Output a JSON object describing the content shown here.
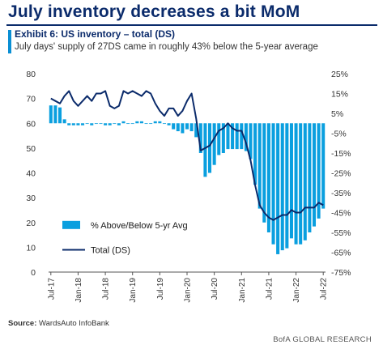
{
  "headline": "July inventory decreases a bit MoM",
  "exhibit_title": "Exhibit 6: US inventory – total (DS)",
  "subtitle": "July days' supply of 27DS came in roughly 43% below the 5-year average",
  "source_label": "Source:",
  "source_text": "WardsAuto InfoBank",
  "brand": "BofA GLOBAL RESEARCH",
  "colors": {
    "bars": "#0a9fdf",
    "line": "#0b2b6b",
    "headline": "#0b2b6b",
    "accent": "#0a8fd4"
  },
  "chart_data": {
    "type": "bar+line",
    "x": [
      "Jul-17",
      "Aug-17",
      "Sep-17",
      "Oct-17",
      "Nov-17",
      "Dec-17",
      "Jan-18",
      "Feb-18",
      "Mar-18",
      "Apr-18",
      "May-18",
      "Jun-18",
      "Jul-18",
      "Aug-18",
      "Sep-18",
      "Oct-18",
      "Nov-18",
      "Dec-18",
      "Jan-19",
      "Feb-19",
      "Mar-19",
      "Apr-19",
      "May-19",
      "Jun-19",
      "Jul-19",
      "Aug-19",
      "Sep-19",
      "Oct-19",
      "Nov-19",
      "Dec-19",
      "Jan-20",
      "Feb-20",
      "Mar-20",
      "Apr-20",
      "May-20",
      "Jun-20",
      "Jul-20",
      "Aug-20",
      "Sep-20",
      "Oct-20",
      "Nov-20",
      "Dec-20",
      "Jan-21",
      "Feb-21",
      "Mar-21",
      "Apr-21",
      "May-21",
      "Jun-21",
      "Jul-21",
      "Aug-21",
      "Sep-21",
      "Oct-21",
      "Nov-21",
      "Dec-21",
      "Jan-22",
      "Feb-22",
      "Mar-22",
      "Apr-22",
      "May-22",
      "Jun-22",
      "Jul-22"
    ],
    "x_tick_labels": [
      "Jul-17",
      "Jan-18",
      "Jul-18",
      "Jan-19",
      "Jul-19",
      "Jan-20",
      "Jul-20",
      "Jan-21",
      "Jul-21",
      "Jan-22",
      "Jul-22"
    ],
    "left_axis": {
      "min": 0,
      "max": 80,
      "ticks": [
        0,
        10,
        20,
        30,
        40,
        50,
        60,
        70,
        80
      ]
    },
    "right_axis": {
      "min": -75,
      "max": 25,
      "ticks": [
        "25%",
        "15%",
        "5%",
        "-5%",
        "-15%",
        "-25%",
        "-35%",
        "-45%",
        "-55%",
        "-65%",
        "-75%"
      ]
    },
    "series": [
      {
        "name": "% Above/Below 5-yr Avg",
        "type": "bar",
        "axis": "right",
        "values": [
          9,
          9,
          8,
          2,
          -1,
          -1,
          -1,
          -1,
          0,
          -1,
          0,
          0,
          -1,
          -1,
          0,
          -1,
          1,
          0,
          0,
          1,
          1,
          0,
          0,
          1,
          1,
          0,
          -1,
          -3,
          -4,
          -5,
          -3,
          -4,
          -7,
          -15,
          -27,
          -25,
          -21,
          -16,
          -15,
          -13,
          -13,
          -13,
          -13,
          -14,
          -18,
          -31,
          -43,
          -50,
          -55,
          -61,
          -66,
          -64,
          -63,
          -58,
          -61,
          -61,
          -59,
          -55,
          -52,
          -48,
          -43
        ]
      },
      {
        "name": "Total (DS)",
        "type": "line",
        "axis": "left",
        "values": [
          70,
          69,
          68,
          71,
          73,
          69,
          67,
          69,
          71,
          69,
          72,
          72,
          73,
          67,
          66,
          67,
          73,
          72,
          73,
          72,
          71,
          73,
          72,
          68,
          65,
          63,
          66,
          66,
          63,
          65,
          69,
          72,
          62,
          49,
          50,
          51,
          54,
          57,
          58,
          60,
          58,
          57,
          57,
          52,
          45,
          35,
          27,
          24,
          22,
          21,
          22,
          23,
          23,
          25,
          24,
          24,
          26,
          26,
          26,
          28,
          27
        ]
      }
    ]
  }
}
